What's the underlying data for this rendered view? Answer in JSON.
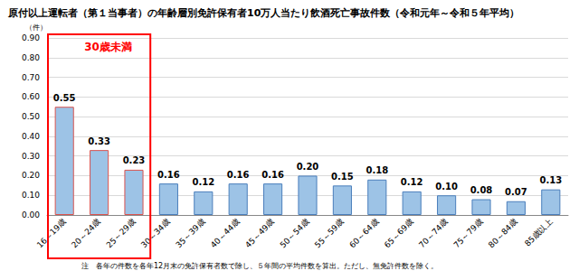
{
  "chart_data": {
    "type": "bar",
    "title": "原付以上運転者（第１当事者）の年齢層別免許保有者10万人当たり飲酒死亡事故件数（令和元年～令和５年平均）",
    "y_label": "（件）",
    "categories": [
      "16～19歳",
      "20～24歳",
      "25～29歳",
      "30～34歳",
      "35～39歳",
      "40～44歳",
      "45～49歳",
      "50～54歳",
      "55～59歳",
      "60～64歳",
      "65～69歳",
      "70～74歳",
      "75～79歳",
      "80～84歳",
      "85歳以上"
    ],
    "values": [
      0.55,
      0.33,
      0.23,
      0.16,
      0.12,
      0.16,
      0.16,
      0.2,
      0.15,
      0.18,
      0.12,
      0.1,
      0.08,
      0.07,
      0.13
    ],
    "value_labels": [
      "0.55",
      "0.33",
      "0.23",
      "0.16",
      "0.12",
      "0.16",
      "0.16",
      "0.20",
      "0.15",
      "0.18",
      "0.12",
      "0.10",
      "0.08",
      "0.07",
      "0.13"
    ],
    "color": "#9dc3e6",
    "ylim": [
      0,
      0.9
    ],
    "yticks": [
      {
        "value": 0,
        "label": "0.00"
      },
      {
        "value": 0.1,
        "label": "0.10"
      },
      {
        "value": 0.2,
        "label": "0.20"
      },
      {
        "value": 0.3,
        "label": "0.30"
      },
      {
        "value": 0.4,
        "label": "0.40"
      },
      {
        "value": 0.5,
        "label": "0.50"
      },
      {
        "value": 0.6,
        "label": "0.60"
      },
      {
        "value": 0.7,
        "label": "0.70"
      },
      {
        "value": 0.8,
        "label": "0.80"
      },
      {
        "value": 0.9,
        "label": "0.90"
      }
    ],
    "grid": true,
    "data_labels": true,
    "annotation": {
      "text": "30歳未満",
      "from": "16～19歳",
      "to": "25～29歳",
      "color": "#ff0000"
    },
    "note": "注　各年の件数を各年12月末の免許保有者数で除し、５年間の平均件数を算出。ただし、無免許件数を除く。"
  }
}
